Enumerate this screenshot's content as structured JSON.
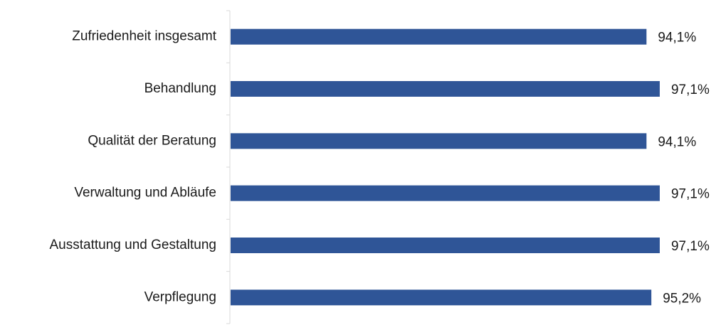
{
  "chart_data": {
    "type": "bar",
    "orientation": "horizontal",
    "categories": [
      "Zufriedenheit insgesamt",
      "Behandlung",
      "Qualität der Beratung",
      "Verwaltung und Abläufe",
      "Ausstattung und Gestaltung",
      "Verpflegung"
    ],
    "values": [
      94.1,
      97.1,
      94.1,
      97.1,
      97.1,
      95.2
    ],
    "data_labels": [
      "94,1%",
      "97,1%",
      "94,1%",
      "97,1%",
      "97,1%",
      "95,2%"
    ],
    "xlim": [
      0,
      100
    ],
    "unit": "%",
    "bar_color": "#2f5597",
    "grid": false,
    "legend": "none"
  }
}
